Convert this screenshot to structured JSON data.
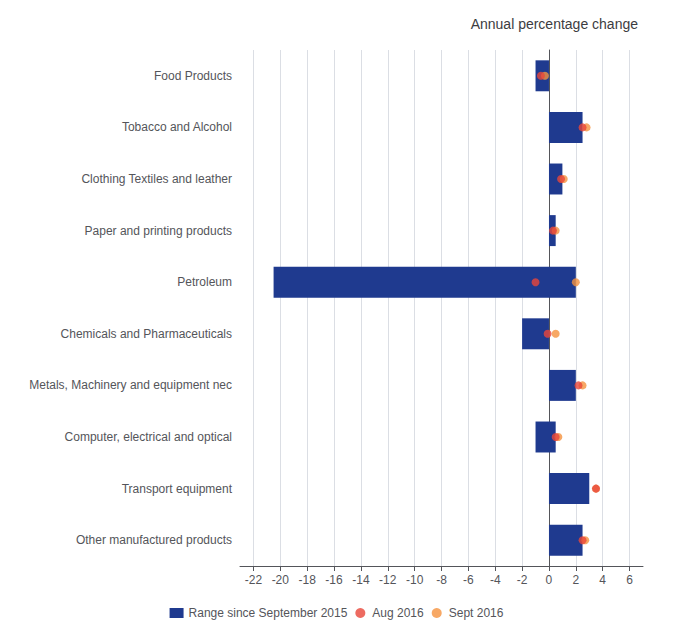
{
  "chart_data": {
    "type": "bar",
    "orientation": "horizontal",
    "title": "Annual percentage change",
    "categories": [
      "Food Products",
      "Tobacco and Alcohol",
      "Clothing Textiles and leather",
      "Paper and printing products",
      "Petroleum",
      "Chemicals and Pharmaceuticals",
      "Metals, Machinery and equipment nec",
      "Computer, electrical and optical",
      "Transport equipment",
      "Other manufactured products"
    ],
    "series": [
      {
        "name": "Range since September 2015",
        "type": "bar",
        "color": "#1f3a8f",
        "low": [
          -1.0,
          0.0,
          0.0,
          0.0,
          -20.5,
          -2.0,
          0.0,
          -1.0,
          0.0,
          0.0
        ],
        "high": [
          0.0,
          2.5,
          1.0,
          0.5,
          2.0,
          0.0,
          2.0,
          0.5,
          3.0,
          2.5
        ]
      },
      {
        "name": "Aug 2016",
        "type": "scatter",
        "color": "#e8463a",
        "marker": "circle",
        "values": [
          -0.6,
          2.5,
          0.9,
          0.3,
          -1.0,
          -0.1,
          2.2,
          0.5,
          3.5,
          2.5
        ]
      },
      {
        "name": "Sept 2016",
        "type": "scatter",
        "color": "#f5923e",
        "marker": "circle",
        "values": [
          -0.3,
          2.8,
          1.1,
          0.5,
          2.0,
          0.5,
          2.5,
          0.7,
          3.5,
          2.7
        ]
      }
    ],
    "xlim": [
      -23,
      7
    ],
    "xticks": [
      -22,
      -20,
      -18,
      -16,
      -14,
      -12,
      -10,
      -8,
      -6,
      -4,
      -2,
      0,
      2,
      4,
      6
    ],
    "grid": true,
    "legend": "bottom"
  }
}
